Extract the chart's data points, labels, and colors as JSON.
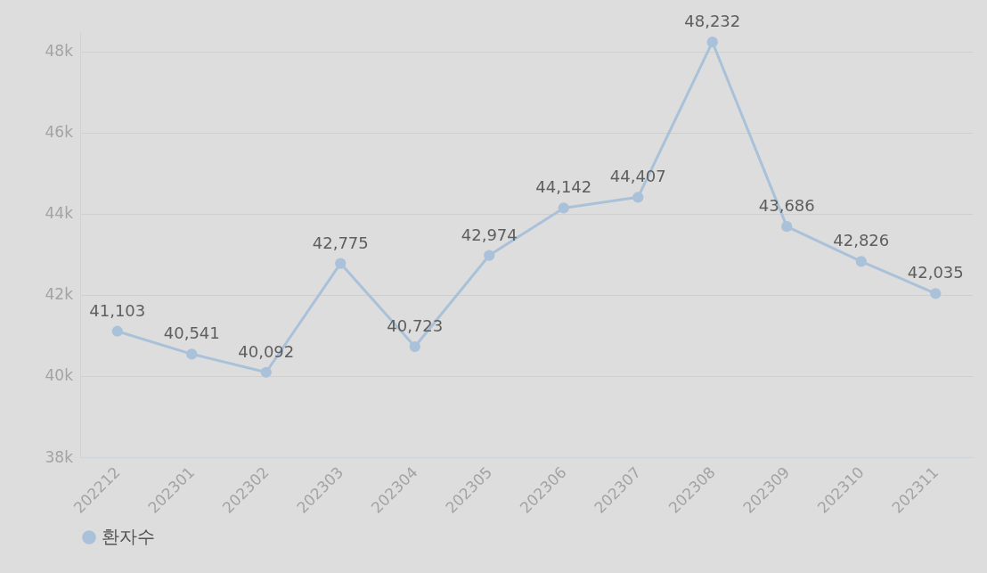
{
  "chart_data": {
    "type": "line",
    "categories": [
      "202212",
      "202301",
      "202302",
      "202303",
      "202304",
      "202305",
      "202306",
      "202307",
      "202308",
      "202309",
      "202310",
      "202311"
    ],
    "series": [
      {
        "name": "환자수",
        "color": "#a9c1d9",
        "values": [
          41103,
          40541,
          40092,
          42775,
          40723,
          42974,
          44142,
          44407,
          48232,
          43686,
          42826,
          42035
        ],
        "value_labels": [
          "41,103",
          "40,541",
          "40,092",
          "42,775",
          "40,723",
          "42,974",
          "44,142",
          "44,407",
          "48,232",
          "43,686",
          "42,826",
          "42,035"
        ]
      }
    ],
    "ylim": [
      38000,
      48500
    ],
    "yticks": [
      {
        "value": 38000,
        "label": "38k"
      },
      {
        "value": 40000,
        "label": "40k"
      },
      {
        "value": 42000,
        "label": "42k"
      },
      {
        "value": 44000,
        "label": "44k"
      },
      {
        "value": 46000,
        "label": "46k"
      },
      {
        "value": 48000,
        "label": "48k"
      }
    ],
    "grid": "y",
    "legend": "bottom",
    "marker": "circle"
  }
}
